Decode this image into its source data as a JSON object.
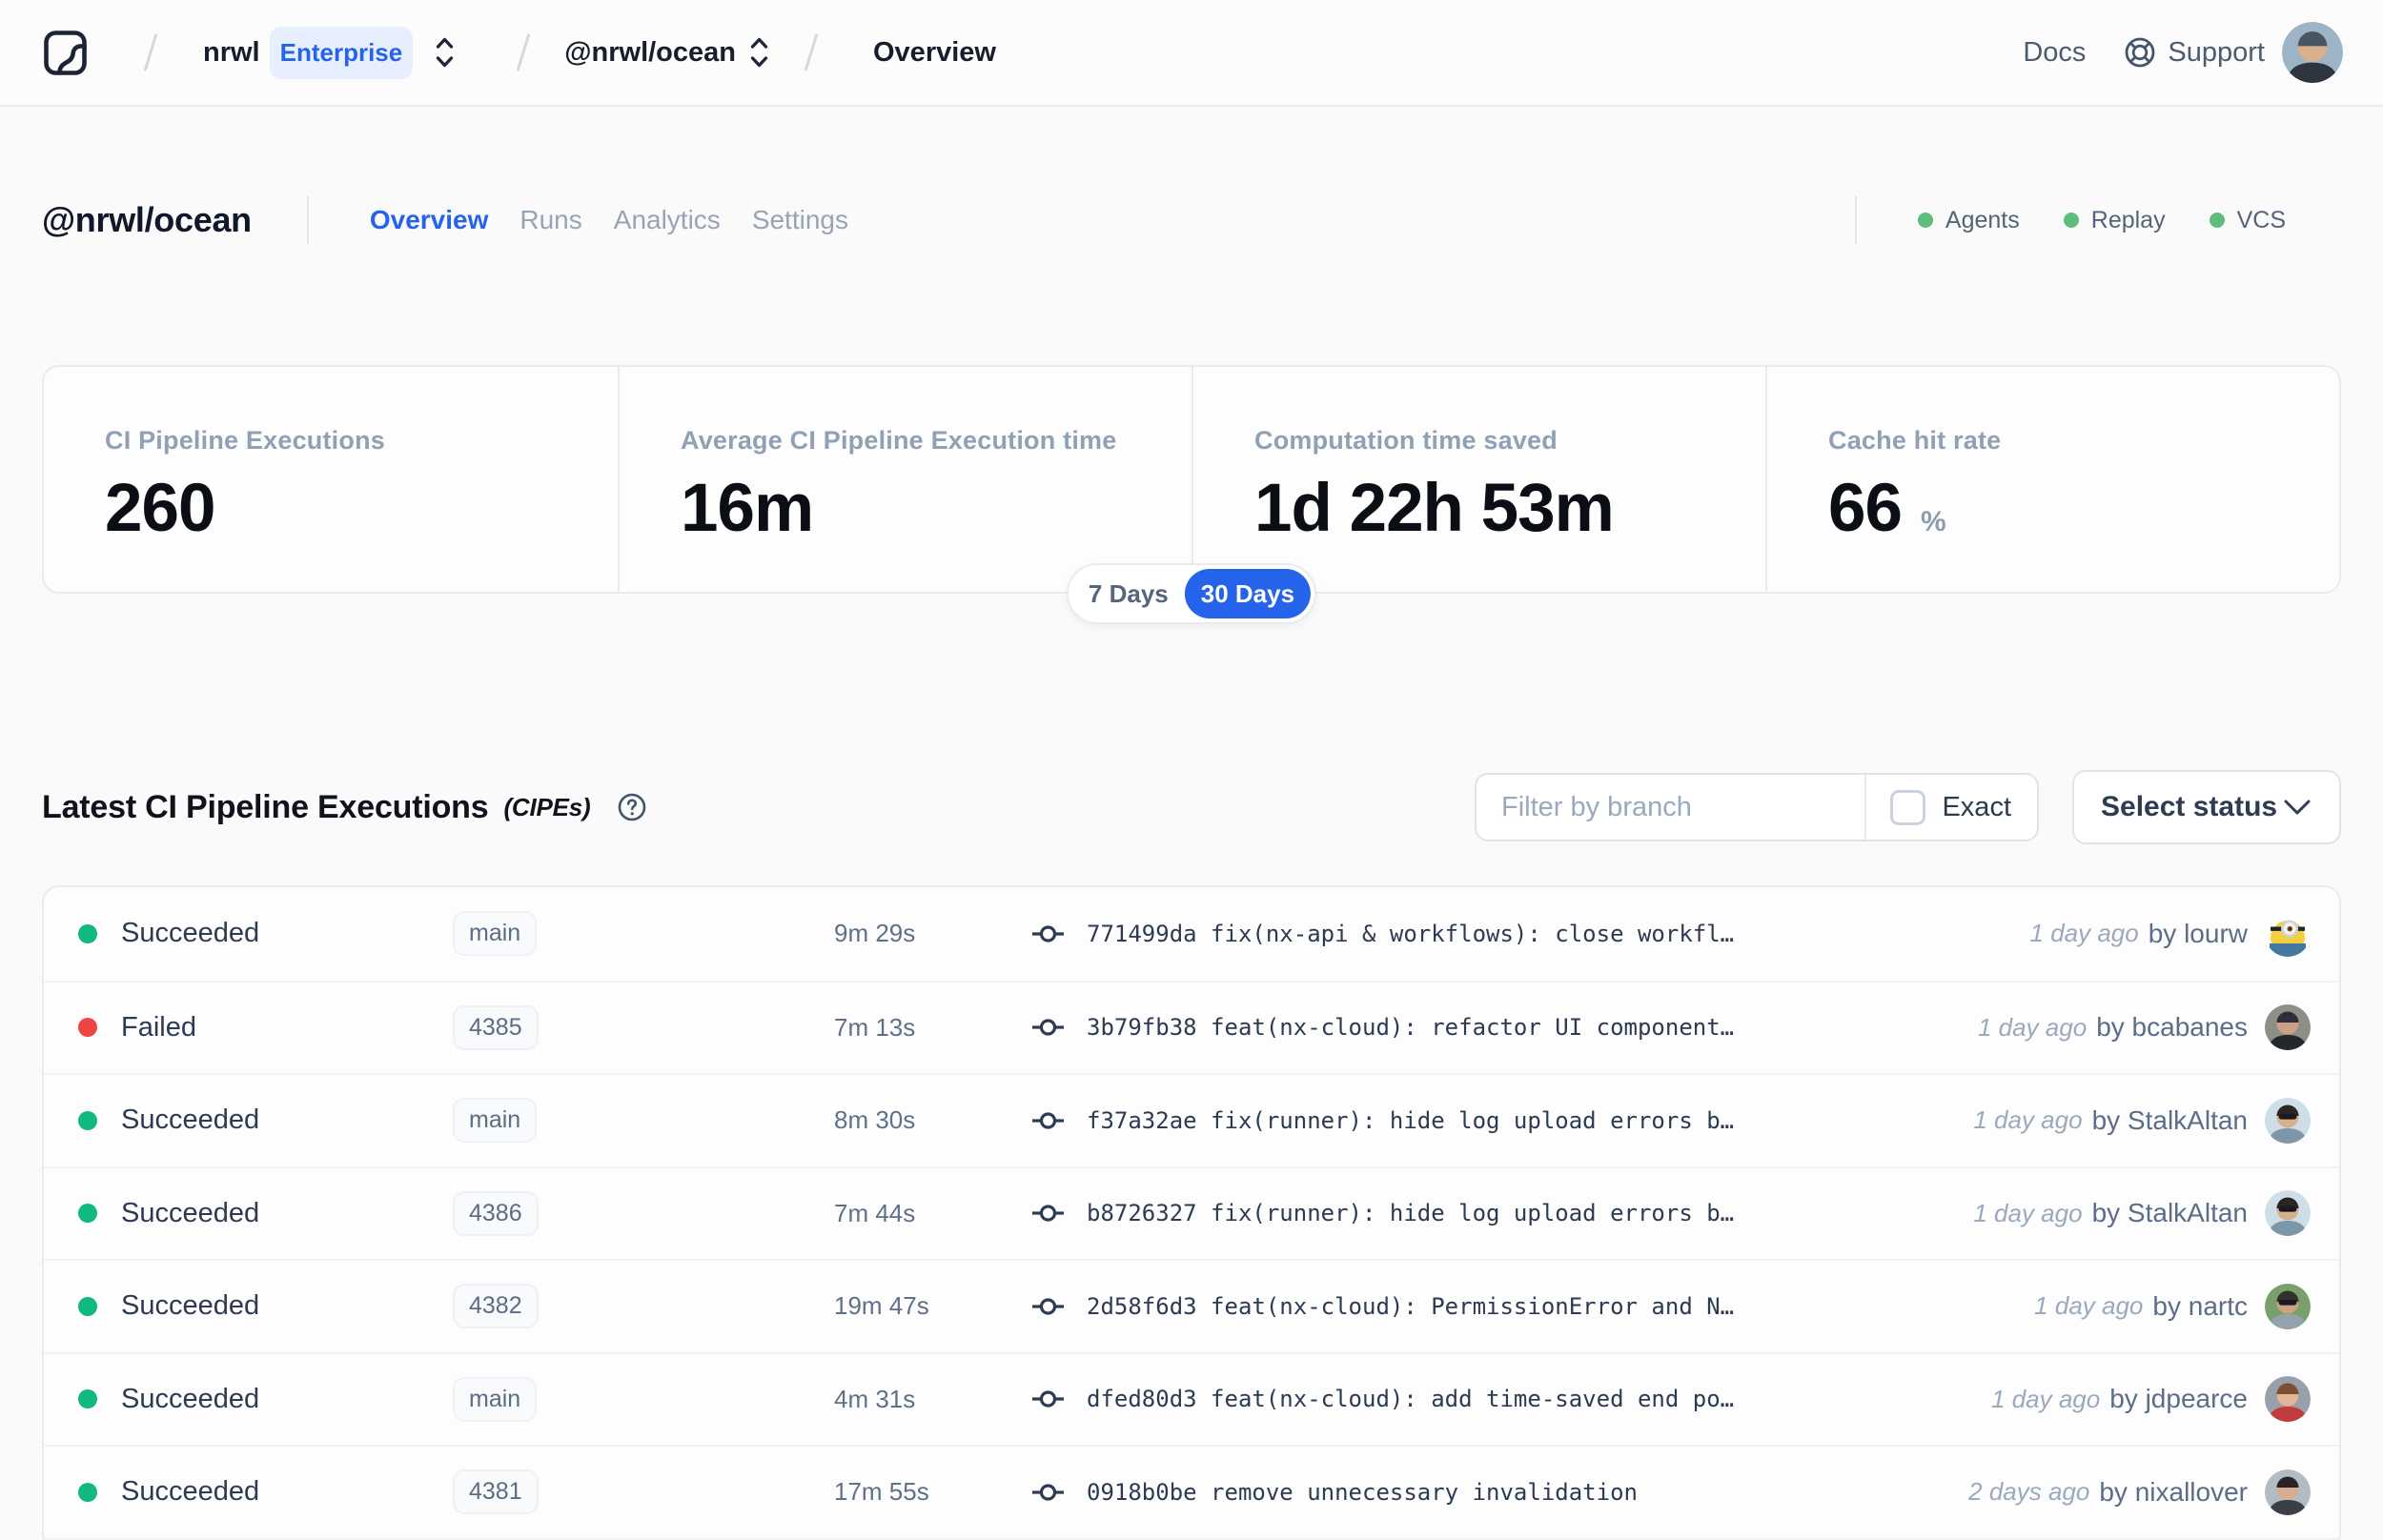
{
  "theme": {
    "accent": "#2563eb",
    "page-bg": "#fafafa",
    "ok-green": "#5cbd7d",
    "succeeded-green": "#10b981",
    "failed-red": "#ef4444"
  },
  "topbar": {
    "org": "nrwl",
    "org_badge": "Enterprise",
    "workspace": "@nrwl/ocean",
    "page": "Overview",
    "docs_label": "Docs",
    "support_label": "Support",
    "user_avatar": {
      "bg": "#9db4c6",
      "skin": "#d9b08c",
      "hair": "#4a5563",
      "shirt": "#2e3440",
      "accessory": "none",
      "variant": "person"
    }
  },
  "workspace_header": {
    "title": "@nrwl/ocean",
    "tabs": [
      {
        "label": "Overview",
        "active": true
      },
      {
        "label": "Runs",
        "active": false
      },
      {
        "label": "Analytics",
        "active": false
      },
      {
        "label": "Settings",
        "active": false
      }
    ],
    "services": [
      {
        "label": "Agents",
        "status_color": "#5cbd7d"
      },
      {
        "label": "Replay",
        "status_color": "#5cbd7d"
      },
      {
        "label": "VCS",
        "status_color": "#5cbd7d"
      }
    ]
  },
  "stats": {
    "cards": [
      {
        "label": "CI Pipeline Executions",
        "value": "260",
        "suffix": ""
      },
      {
        "label": "Average CI Pipeline Execution time",
        "value": "16m",
        "suffix": ""
      },
      {
        "label": "Computation time saved",
        "value": "1d 22h 53m",
        "suffix": ""
      },
      {
        "label": "Cache hit rate",
        "value": "66",
        "suffix": "%"
      }
    ],
    "range_toggle": {
      "options": [
        "7 Days",
        "30 Days"
      ],
      "selected": "30 Days"
    }
  },
  "cipe_section": {
    "title": "Latest CI Pipeline Executions",
    "title_suffix": "(CIPEs)",
    "filter_placeholder": "Filter by branch",
    "filter_value": "",
    "exact_label": "Exact",
    "exact_checked": false,
    "status_dropdown_label": "Select status"
  },
  "table": {
    "rows": [
      {
        "status": "Succeeded",
        "status_color": "#10b981",
        "branch": "main",
        "duration": "9m 29s",
        "commit_hash": "771499da",
        "commit_message": "fix(nx-api & workflows): close workfl…",
        "time_ago": "1 day ago",
        "author": "by lourw",
        "avatar": {
          "variant": "minion",
          "bg": "#fefefe",
          "skin": "#f4cf3f",
          "hair": "",
          "shirt": "#4379a0",
          "accessory": "goggle"
        }
      },
      {
        "status": "Failed",
        "status_color": "#ef4444",
        "branch": "4385",
        "duration": "7m 13s",
        "commit_hash": "3b79fb38",
        "commit_message": "feat(nx-cloud): refactor UI component…",
        "time_ago": "1 day ago",
        "author": "by bcabanes",
        "avatar": {
          "variant": "person",
          "bg": "#8f8d88",
          "skin": "#caa184",
          "hair": "#2a2f38",
          "shirt": "#23272e",
          "accessory": "none"
        }
      },
      {
        "status": "Succeeded",
        "status_color": "#10b981",
        "branch": "main",
        "duration": "8m 30s",
        "commit_hash": "f37a32ae",
        "commit_message": "fix(runner): hide log upload errors b…",
        "time_ago": "1 day ago",
        "author": "by StalkAltan",
        "avatar": {
          "variant": "person",
          "bg": "#cfdde6",
          "skin": "#d9b08c",
          "hair": "#2c2420",
          "shirt": "#7e97a8",
          "accessory": "sunglasses"
        }
      },
      {
        "status": "Succeeded",
        "status_color": "#10b981",
        "branch": "4386",
        "duration": "7m 44s",
        "commit_hash": "b8726327",
        "commit_message": "fix(runner): hide log upload errors b…",
        "time_ago": "1 day ago",
        "author": "by StalkAltan",
        "avatar": {
          "variant": "person",
          "bg": "#cfdde6",
          "skin": "#d9b08c",
          "hair": "#2c2420",
          "shirt": "#7e97a8",
          "accessory": "sunglasses"
        }
      },
      {
        "status": "Succeeded",
        "status_color": "#10b981",
        "branch": "4382",
        "duration": "19m 47s",
        "commit_hash": "2d58f6d3",
        "commit_message": "feat(nx-cloud): PermissionError and N…",
        "time_ago": "1 day ago",
        "author": "by nartc",
        "avatar": {
          "variant": "person",
          "bg": "#79a06c",
          "skin": "#caa37e",
          "hair": "#32302b",
          "shirt": "#93a3ae",
          "accessory": "sunglasses"
        }
      },
      {
        "status": "Succeeded",
        "status_color": "#10b981",
        "branch": "main",
        "duration": "4m 31s",
        "commit_hash": "dfed80d3",
        "commit_message": "feat(nx-cloud): add time-saved end po…",
        "time_ago": "1 day ago",
        "author": "by jdpearce",
        "avatar": {
          "variant": "person",
          "bg": "#98a1ab",
          "skin": "#e0b695",
          "hair": "#7a4f35",
          "shirt": "#c43b3b",
          "accessory": "none"
        }
      },
      {
        "status": "Succeeded",
        "status_color": "#10b981",
        "branch": "4381",
        "duration": "17m 55s",
        "commit_hash": "0918b0be",
        "commit_message": "remove unnecessary invalidation",
        "time_ago": "2 days ago",
        "author": "by nixallover",
        "avatar": {
          "variant": "person",
          "bg": "#b3bbc3",
          "skin": "#d8ad92",
          "hair": "#2a2226",
          "shirt": "#3b3f46",
          "accessory": "none"
        }
      }
    ]
  }
}
